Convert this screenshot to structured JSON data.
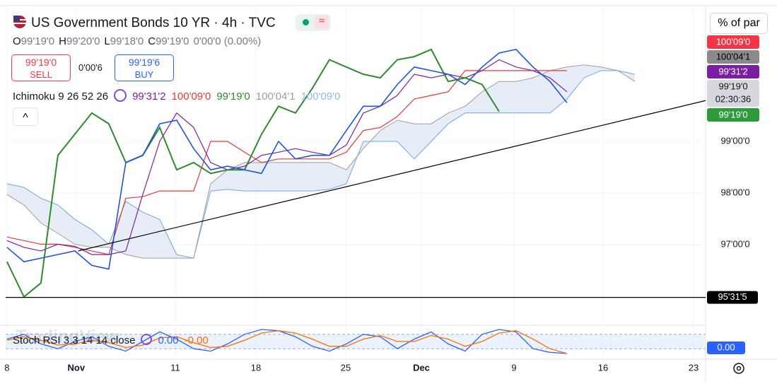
{
  "header": {
    "title": "US Government Bonds 10 YR · 4h · TVC",
    "ohlc": [
      {
        "key": "O",
        "value": "99'19'0"
      },
      {
        "key": "H",
        "value": "99'20'0"
      },
      {
        "key": "L",
        "value": "99'18'0"
      },
      {
        "key": "C",
        "value": "99'19'0"
      }
    ],
    "change": "0'00'0 (0.00%)",
    "sell": {
      "price": "99'19'0",
      "label": "SELL"
    },
    "spread": "0'00'6",
    "buy": {
      "price": "99'19'6",
      "label": "BUY"
    },
    "scale_button": "% of par",
    "collapse": "^",
    "watermark": "TradingView"
  },
  "indicator_legend": {
    "label": "Ichimoku 9 26 52 26",
    "values": [
      {
        "text": "99'31'2",
        "color": "#7b1fa2"
      },
      {
        "text": "100'09'0",
        "color": "#e53935"
      },
      {
        "text": "99'19'0",
        "color": "#2e8b2e"
      },
      {
        "text": "100'04'1",
        "color": "#9e9e9e"
      },
      {
        "text": "100'09'0",
        "color": "#90b8e8"
      }
    ]
  },
  "price_tags": [
    {
      "label": "100'09'0",
      "color": "#f23645",
      "text_color": "#ffffff"
    },
    {
      "label": "100'04'1",
      "color": "#8a8a8a",
      "text_color": "#000000"
    },
    {
      "label": "99'31'2",
      "color": "#7b1fa2",
      "text_color": "#ffffff"
    },
    {
      "label": "99'19'0",
      "sub": "02:30:36",
      "color": "#d6d8de",
      "text_color": "#131722"
    },
    {
      "label": "99'19'0",
      "color": "#2e9b3a",
      "text_color": "#ffffff"
    }
  ],
  "chart_data": [
    {
      "type": "ichimoku",
      "x": [
        0,
        1,
        2,
        3,
        4,
        5,
        6,
        7,
        8,
        9,
        10,
        11,
        12,
        13,
        14,
        15,
        16,
        17,
        18,
        19,
        20,
        21,
        22,
        23,
        24,
        25,
        26,
        27,
        28,
        29,
        30,
        31,
        32,
        33,
        34,
        35,
        36,
        37
      ],
      "xlim": [
        -0.08,
        41.17
      ],
      "xticks": [
        {
          "value": 0,
          "label": "8"
        },
        {
          "value": 4.08,
          "label": "Nov"
        },
        {
          "value": 9.92,
          "label": "11"
        },
        {
          "value": 14.67,
          "label": "18"
        },
        {
          "value": 19.96,
          "label": "25"
        },
        {
          "value": 24.42,
          "label": "Dec"
        },
        {
          "value": 29.88,
          "label": "9"
        },
        {
          "value": 35.13,
          "label": "16"
        },
        {
          "value": 40.46,
          "label": "23"
        }
      ],
      "ylim": [
        95.51,
        101.6
      ],
      "yticks": [
        {
          "value": 99,
          "label": "99'00'0"
        },
        {
          "value": 98,
          "label": "98'00'0"
        },
        {
          "value": 97,
          "label": "97'00'0"
        }
      ],
      "series": [
        {
          "color": "#1e53e5",
          "width": 1.6,
          "values": [
            96.95,
            96.67,
            96.74,
            96.81,
            96.88,
            96.6,
            96.53,
            98.59,
            98.73,
            99.34,
            99.41,
            98.86,
            98.45,
            98.52,
            98.45,
            98.38,
            99,
            98.66,
            98.73,
            98.73,
            99.21,
            99.68,
            99.68,
            100.1,
            100.44,
            100.37,
            100.3,
            100.1,
            100.44,
            100.71,
            100.78,
            100.44,
            100.16,
            99.75,
            null,
            null,
            null,
            null
          ]
        },
        {
          "color": "#7b1fa2",
          "width": 1.2,
          "values": [
            97.08,
            96.95,
            96.88,
            97.01,
            96.97,
            96.81,
            96.81,
            96.88,
            97.97,
            99,
            99.55,
            99.27,
            98.59,
            98.45,
            98.52,
            98.73,
            98.79,
            98.86,
            98.79,
            98.73,
            98.93,
            99.55,
            99.68,
            99.89,
            100.3,
            100.23,
            100.3,
            100.23,
            100.37,
            100.58,
            100.44,
            100.37,
            100.23,
            99.96,
            null,
            null,
            null,
            null
          ]
        },
        {
          "color": "#e53935",
          "width": 1.2,
          "values": [
            97.15,
            97.08,
            97.01,
            97.01,
            96.95,
            96.88,
            96.81,
            97.9,
            97.93,
            98.04,
            98.04,
            98.04,
            99,
            99,
            98.79,
            98.59,
            98.66,
            98.66,
            98.66,
            98.66,
            98.79,
            99.21,
            99.27,
            99.48,
            99.82,
            99.89,
            99.96,
            100.37,
            100.37,
            100.37,
            100.37,
            100.37,
            100.37,
            100.37,
            null,
            null,
            null,
            null
          ]
        },
        {
          "color": "#2e8b2e",
          "width": 2,
          "values": [
            96.67,
            95.99,
            96.26,
            98.73,
            99.14,
            99.55,
            99.34,
            98.59,
            98.73,
            99.27,
            98.45,
            98.59,
            98.38,
            98.45,
            98.45,
            99.14,
            99.68,
            99.55,
            100.03,
            100.58,
            100.44,
            100.3,
            100.23,
            100.58,
            100.64,
            100.78,
            100.16,
            100.23,
            100.1,
            99.58,
            null,
            null,
            null,
            null,
            null,
            null,
            null,
            null
          ]
        },
        {
          "color": "#6fa8dc",
          "width": 1,
          "values": [
            98.18,
            98.11,
            97.9,
            97.77,
            97.49,
            97.29,
            97.01,
            97.84,
            97.63,
            97.49,
            96.81,
            96.74,
            98.04,
            98.07,
            98.04,
            98.04,
            98.04,
            98.04,
            98.04,
            98.07,
            98.18,
            99,
            99,
            99,
            98.66,
            99,
            99.34,
            99.55,
            99.55,
            99.55,
            99.55,
            99.55,
            99.55,
            99.82,
            100.23,
            100.37,
            100.37,
            100.3
          ]
        },
        {
          "color": "#9e9e9e",
          "width": 1,
          "values": [
            97.97,
            97.77,
            97.42,
            97.22,
            97.01,
            96.95,
            96.95,
            96.81,
            96.74,
            96.74,
            96.74,
            96.74,
            98.18,
            98.45,
            98.59,
            98.59,
            98.59,
            98.59,
            98.59,
            98.59,
            98.45,
            98.86,
            99.21,
            99.41,
            99.34,
            99.34,
            99.55,
            99.68,
            99.96,
            100.16,
            100.16,
            100.23,
            100.37,
            100.44,
            100.48,
            100.44,
            100.37,
            100.16
          ]
        }
      ],
      "cloud_color": "#dde6f2",
      "trendline": {
        "x": [
          4.2,
          41.17
        ],
        "values": [
          96.88,
          99.79
        ]
      },
      "hline": {
        "value": 95.98,
        "label": "95'31'5"
      }
    },
    {
      "type": "line",
      "title": "Stoch RSI 3 3 14 14 close",
      "value_labels": [
        "0.00",
        "-0.00"
      ],
      "tag": "0.00",
      "x": [
        0,
        1,
        2,
        3,
        4,
        5,
        6,
        7,
        8,
        9,
        10,
        11,
        12,
        13,
        14,
        15,
        16,
        17,
        18,
        19,
        20,
        21,
        22,
        23,
        24,
        25,
        26,
        27,
        28,
        29,
        30,
        31,
        32,
        33
      ],
      "ylim": [
        0,
        100
      ],
      "bands": [
        80,
        20
      ],
      "series": [
        {
          "color": "#2962ff",
          "values": [
            60,
            80,
            40,
            20,
            50,
            70,
            30,
            10,
            50,
            90,
            60,
            20,
            10,
            40,
            80,
            100,
            95,
            70,
            30,
            10,
            40,
            80,
            70,
            20,
            60,
            90,
            40,
            10,
            80,
            100,
            90,
            20,
            5,
            0
          ]
        },
        {
          "color": "#ff6d00",
          "values": [
            55,
            70,
            55,
            35,
            40,
            55,
            45,
            25,
            35,
            65,
            70,
            45,
            25,
            30,
            55,
            85,
            95,
            85,
            60,
            30,
            30,
            60,
            75,
            50,
            50,
            75,
            60,
            30,
            50,
            85,
            95,
            60,
            20,
            0
          ]
        }
      ]
    }
  ]
}
